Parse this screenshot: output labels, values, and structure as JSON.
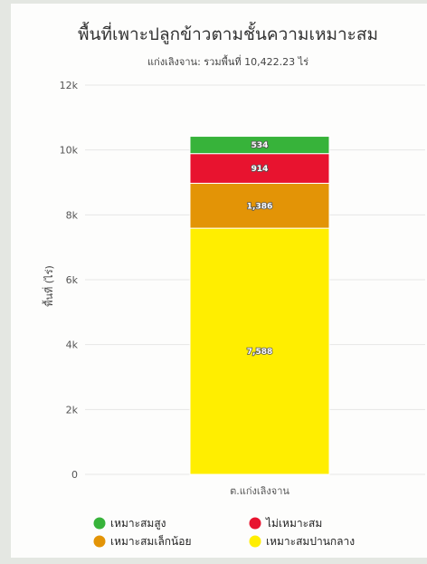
{
  "chart_data": {
    "type": "bar",
    "stacked": true,
    "title": "พื้นที่เพาะปลูกข้าวตามชั้นความเหมาะสม",
    "subtitle": "แก่งเลิงจาน: รวมพื้นที่ 10,422.23 ไร่",
    "ylabel": "พื้นที่ (ไร่)",
    "xlabel": "",
    "categories": [
      "ต.แก่งเลิงจาน"
    ],
    "ylim": [
      0,
      12000
    ],
    "yticks": [
      0,
      2000,
      4000,
      6000,
      8000,
      10000,
      12000
    ],
    "ytick_labels": [
      "0",
      "2k",
      "4k",
      "6k",
      "8k",
      "10k",
      "12k"
    ],
    "grid": true,
    "legend": "bottom",
    "series": [
      {
        "name": "เหมาะสมปานกลาง",
        "values": [
          7588
        ],
        "label": "7,588",
        "color": "#ffee00"
      },
      {
        "name": "เหมาะสมเล็กน้อย",
        "values": [
          1386
        ],
        "label": "1,386",
        "color": "#e39406"
      },
      {
        "name": "ไม่เหมาะสม",
        "values": [
          914
        ],
        "label": "914",
        "color": "#e8132f"
      },
      {
        "name": "เหมาะสมสูง",
        "values": [
          534
        ],
        "label": "534",
        "color": "#37b33a"
      }
    ],
    "legend_order": [
      "เหมาะสมสูง",
      "ไม่เหมาะสม",
      "เหมาะสมเล็กน้อย",
      "เหมาะสมปานกลาง"
    ]
  }
}
